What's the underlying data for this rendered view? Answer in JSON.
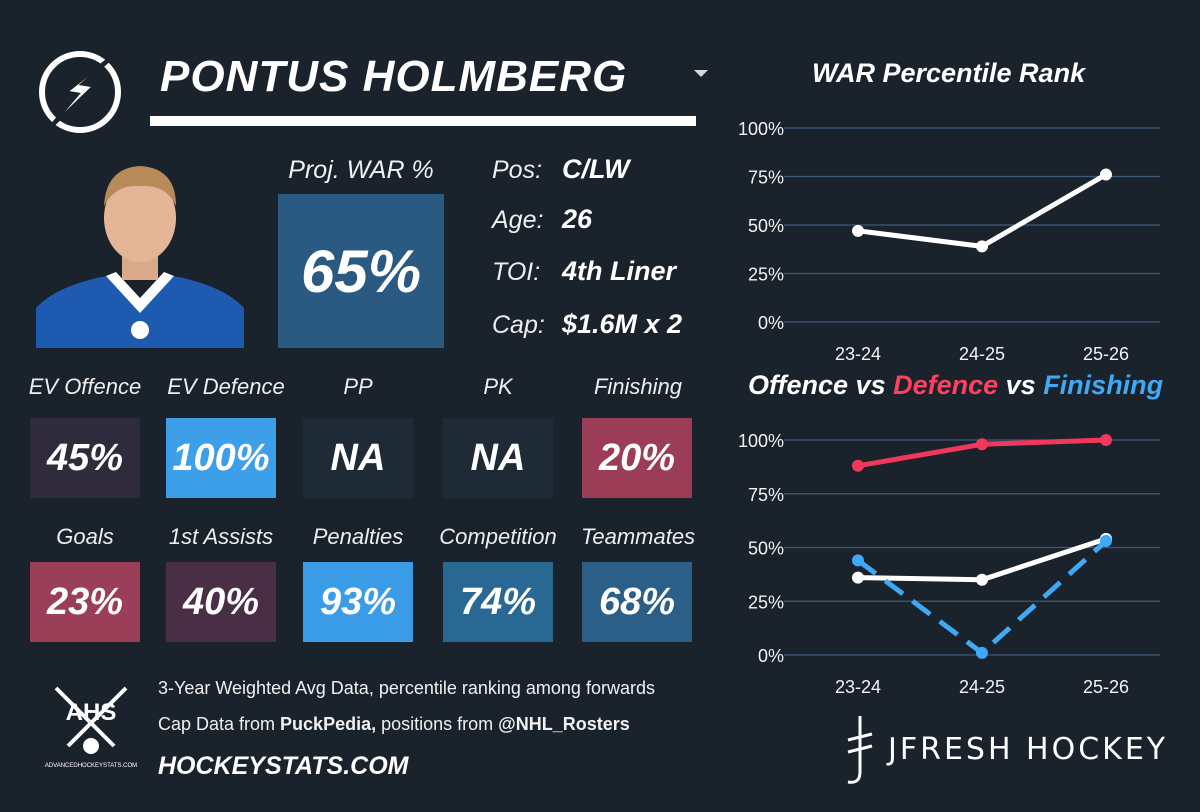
{
  "player": {
    "name": "PONTUS HOLMBERG",
    "proj_war_label": "Proj. WAR %",
    "proj_war_value": "65%"
  },
  "info": [
    {
      "label": "Pos:",
      "value": "C/LW"
    },
    {
      "label": "Age:",
      "value": "26"
    },
    {
      "label": "TOI:",
      "value": "4th Liner"
    },
    {
      "label": "Cap:",
      "value": "$1.6M x 2"
    }
  ],
  "metrics_row1": [
    {
      "label": "EV Offence",
      "value": "45%",
      "color": "#302a3d"
    },
    {
      "label": "EV Defence",
      "value": "100%",
      "color": "#3c9fe8"
    },
    {
      "label": "PP",
      "value": "NA",
      "color": "#1f2a37"
    },
    {
      "label": "PK",
      "value": "NA",
      "color": "#1f2a37"
    },
    {
      "label": "Finishing",
      "value": "20%",
      "color": "#9c3d58"
    }
  ],
  "metrics_row2": [
    {
      "label": "Goals",
      "value": "23%",
      "color": "#9b3f58"
    },
    {
      "label": "1st Assists",
      "value": "40%",
      "color": "#4a2e45"
    },
    {
      "label": "Penalties",
      "value": "93%",
      "color": "#3a9ce6"
    },
    {
      "label": "Competition",
      "value": "74%",
      "color": "#2a6894"
    },
    {
      "label": "Teammates",
      "value": "68%",
      "color": "#2b5f88"
    }
  ],
  "footer": {
    "line1": "3-Year Weighted Avg Data, percentile ranking among forwards",
    "line2_a": "Cap Data from ",
    "line2_b": "PuckPedia,",
    "line2_c": " positions from ",
    "line2_d": "@NHL_Rosters",
    "site": "HOCKEYSTATS.COM",
    "ahs_logo": "AHS",
    "ahs_sub": "ADVANCEDHOCKEYSTATS.COM",
    "brand": "JFRESH HOCKEY"
  },
  "chart_data": [
    {
      "type": "line",
      "title": "WAR Percentile Rank",
      "categories": [
        "23-24",
        "24-25",
        "25-26"
      ],
      "ylim": [
        0,
        100
      ],
      "yticks": [
        "0%",
        "25%",
        "50%",
        "75%",
        "100%"
      ],
      "series": [
        {
          "name": "WAR",
          "values": [
            47,
            39,
            76
          ],
          "color": "#ffffff",
          "dash": false
        }
      ]
    },
    {
      "type": "line",
      "title_parts": [
        "Offence",
        " vs ",
        "Defence",
        " vs ",
        "Finishing"
      ],
      "title_colors": [
        "#ffffff",
        "#ffffff",
        "#ff4060",
        "#ffffff",
        "#3fa9f5"
      ],
      "categories": [
        "23-24",
        "24-25",
        "25-26"
      ],
      "ylim": [
        0,
        100
      ],
      "yticks": [
        "0%",
        "25%",
        "50%",
        "75%",
        "100%"
      ],
      "series": [
        {
          "name": "Defence",
          "values": [
            88,
            98,
            100
          ],
          "color": "#f0385a",
          "dash": false
        },
        {
          "name": "Offence",
          "values": [
            36,
            35,
            54
          ],
          "color": "#ffffff",
          "dash": false
        },
        {
          "name": "Finishing",
          "values": [
            44,
            1,
            53
          ],
          "color": "#3fa9f5",
          "dash": true
        }
      ]
    }
  ]
}
